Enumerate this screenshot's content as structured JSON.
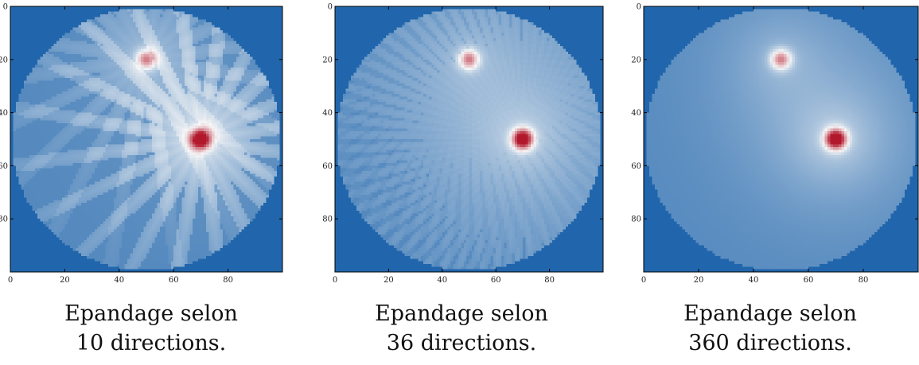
{
  "chart_data": [
    {
      "type": "heatmap",
      "title": "",
      "xlabel": "",
      "ylabel": "",
      "xlim": [
        0,
        100
      ],
      "ylim": [
        100,
        0
      ],
      "xticks": [
        "0",
        "20",
        "40",
        "60",
        "80"
      ],
      "yticks": [
        "0",
        "20",
        "40",
        "60",
        "80"
      ],
      "colormap": [
        "#2166ac",
        "#f7f7f7",
        "#b2182b"
      ],
      "directions": 10,
      "sources": [
        {
          "x": 50,
          "y": 20,
          "intensity": 0.55
        },
        {
          "x": 70,
          "y": 50,
          "intensity": 1.0
        }
      ],
      "grid": false,
      "caption": {
        "line1": "Epandage selon",
        "line2": "10 directions."
      }
    },
    {
      "type": "heatmap",
      "title": "",
      "xlabel": "",
      "ylabel": "",
      "xlim": [
        0,
        100
      ],
      "ylim": [
        100,
        0
      ],
      "xticks": [
        "0",
        "20",
        "40",
        "60",
        "80"
      ],
      "yticks": [
        "0",
        "20",
        "40",
        "60",
        "80"
      ],
      "colormap": [
        "#2166ac",
        "#f7f7f7",
        "#b2182b"
      ],
      "directions": 36,
      "sources": [
        {
          "x": 50,
          "y": 20,
          "intensity": 0.55
        },
        {
          "x": 70,
          "y": 50,
          "intensity": 1.0
        }
      ],
      "grid": false,
      "caption": {
        "line1": "Epandage selon",
        "line2": "36 directions."
      }
    },
    {
      "type": "heatmap",
      "title": "",
      "xlabel": "",
      "ylabel": "",
      "xlim": [
        0,
        100
      ],
      "ylim": [
        100,
        0
      ],
      "xticks": [
        "0",
        "20",
        "40",
        "60",
        "80"
      ],
      "yticks": [
        "0",
        "20",
        "40",
        "60",
        "80"
      ],
      "colormap": [
        "#2166ac",
        "#f7f7f7",
        "#b2182b"
      ],
      "directions": 360,
      "sources": [
        {
          "x": 50,
          "y": 20,
          "intensity": 0.55
        },
        {
          "x": 70,
          "y": 50,
          "intensity": 1.0
        }
      ],
      "grid": false,
      "caption": {
        "line1": "Epandage selon",
        "line2": "360 directions."
      }
    }
  ]
}
